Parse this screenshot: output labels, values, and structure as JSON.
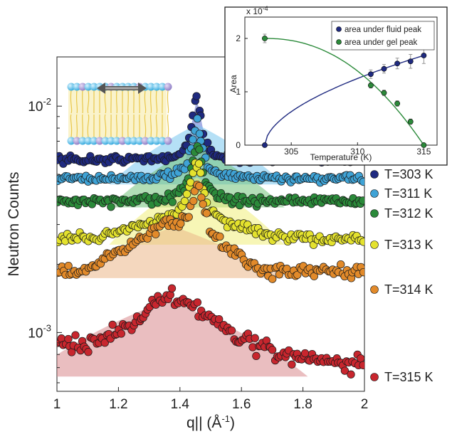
{
  "chart_data": [
    {
      "type": "scatter",
      "title": "",
      "xlabel": "q||",
      "xlabel_sub": "||",
      "xlabel_unit": " (Å",
      "xlabel_unit_exp": "-1",
      "xlabel_unit_close": ")",
      "ylabel": "Neutron Counts",
      "xlim": [
        1,
        2
      ],
      "ylim": [
        0.00055,
        0.0165
      ],
      "yscale": "log",
      "xticks": [
        "1",
        "1.2",
        "1.4",
        "1.6",
        "1.8",
        "2"
      ],
      "ytick_base": "10",
      "yticks": [
        {
          "exp": "-3",
          "value": 0.001
        },
        {
          "exp": "-2",
          "value": 0.01
        }
      ],
      "legend_position": "right",
      "series": [
        {
          "name": "T=303 K",
          "color": "#1f2a80",
          "base": 0.0058,
          "peak_center": 1.455,
          "peak_height": 0.0052,
          "peak_width": 0.016,
          "noise": 0.04
        },
        {
          "name": "T=311 K",
          "color": "#3fa3d6",
          "base": 0.0048,
          "peak_center": 1.455,
          "peak_height": 0.0038,
          "peak_width": 0.017,
          "noise": 0.04
        },
        {
          "name": "T=312 K",
          "color": "#2b8a3a",
          "base": 0.0038,
          "peak_center": 1.455,
          "peak_height": 0.0031,
          "peak_width": 0.018,
          "noise": 0.045
        },
        {
          "name": "T=313 K",
          "color": "#e4e22e",
          "base": 0.0026,
          "peak_center": 1.455,
          "peak_height": 0.0024,
          "peak_width": 0.02,
          "noise": 0.05,
          "broad_center": 1.42,
          "broad_height": 0.0007,
          "broad_width": 0.15
        },
        {
          "name": "T=314 K",
          "color": "#e28a2a",
          "base": 0.00185,
          "peak_center": 1.46,
          "peak_height": 0.0018,
          "peak_width": 0.018,
          "noise": 0.06,
          "broad_center": 1.38,
          "broad_height": 0.0012,
          "broad_width": 0.14
        },
        {
          "name": "T=315 K",
          "color": "#c8262e",
          "base": 0.00068,
          "peak_center": 1.38,
          "peak_height": 0.00075,
          "peak_width": 0.16,
          "noise": 0.08,
          "step_start": 1.0,
          "step_end": 1.2,
          "step_height": 0.00022
        }
      ],
      "shaded_peaks": [
        {
          "series": "T=303 K",
          "color": "#5b6bd0",
          "center": 1.455,
          "height": 0.0052,
          "width": 0.02
        },
        {
          "series": "T=311 K",
          "color": "#78c6ee",
          "center": 1.455,
          "height": 0.0038,
          "width": 0.15
        },
        {
          "series": "T=312 K",
          "color": "#72c27a",
          "center": 1.455,
          "height": 0.0031,
          "width": 0.15
        },
        {
          "series": "T=313 K",
          "color": "#f0ee7a",
          "center": 1.455,
          "height": 0.0024,
          "width": 0.15
        },
        {
          "series": "T=314 K",
          "color": "#ebb789",
          "center": 1.38,
          "height": 0.0012,
          "width": 0.19
        },
        {
          "series": "T=315 K",
          "color": "#d9888c",
          "center": 1.36,
          "height": 0.00075,
          "width": 0.24
        }
      ]
    },
    {
      "type": "scatter",
      "title": "",
      "xlabel": "Temperature (K)",
      "ylabel": "Area",
      "y_multiplier": "x 10",
      "y_multiplier_exp": "-4",
      "xlim": [
        301.5,
        316
      ],
      "ylim": [
        0,
        2.4
      ],
      "xticks": [
        "305",
        "310",
        "315"
      ],
      "yticks": [
        "0",
        "1",
        "2"
      ],
      "legend_position": "top-right",
      "series": [
        {
          "name": "area under fluid peak",
          "color": "#1f2a80",
          "x": [
            303,
            311,
            312,
            313,
            314,
            315
          ],
          "y": [
            0.0,
            1.33,
            1.43,
            1.53,
            1.57,
            1.68
          ],
          "err": [
            0.0,
            0.08,
            0.08,
            0.1,
            0.13,
            0.15
          ]
        },
        {
          "name": "area under gel peak",
          "color": "#2b8a3a",
          "x": [
            303,
            311,
            312,
            313,
            314,
            315
          ],
          "y": [
            2.0,
            1.12,
            0.98,
            0.78,
            0.44,
            0.0
          ],
          "err": [
            0.08,
            0.05,
            0.05,
            0.05,
            0.05,
            0.02
          ]
        }
      ]
    }
  ]
}
